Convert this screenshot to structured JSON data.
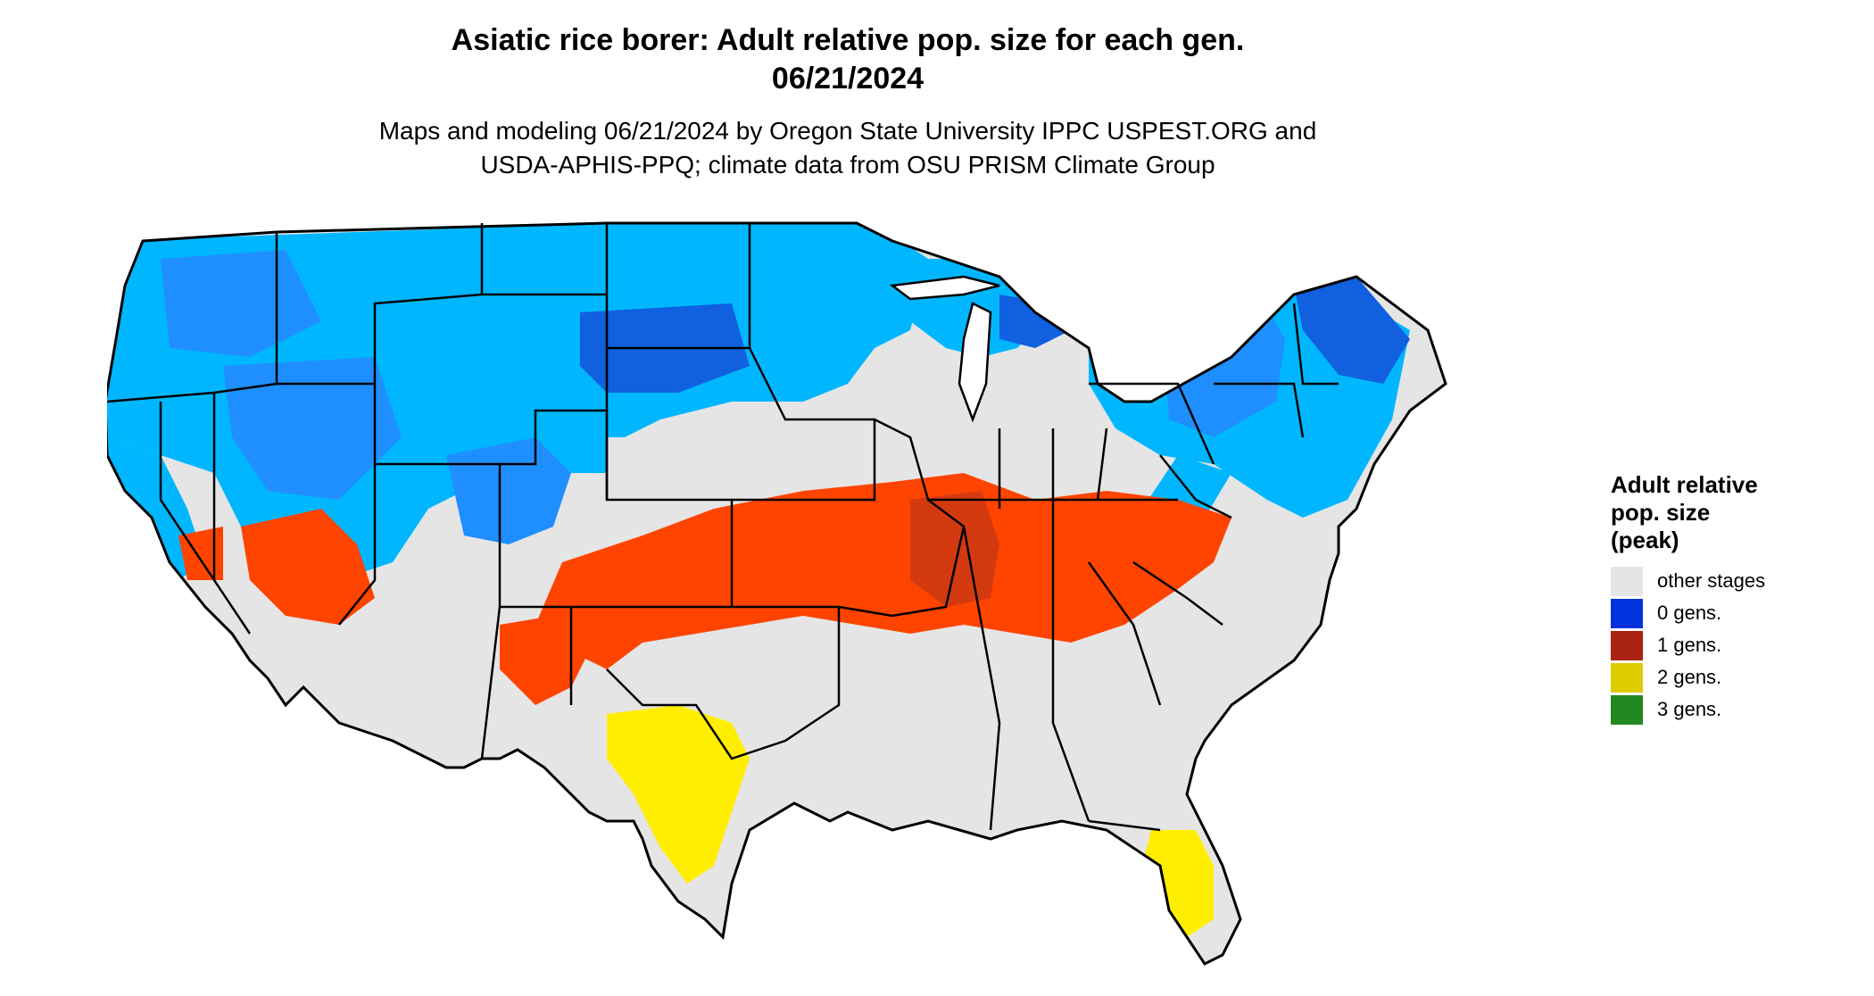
{
  "header": {
    "title_line1": "Asiatic rice borer: Adult relative pop. size for each gen.",
    "title_line2": "06/21/2024",
    "subtitle_line1": "Maps and modeling 06/21/2024 by Oregon State University IPPC USPEST.ORG and",
    "subtitle_line2": "USDA-APHIS-PPQ; climate data from OSU PRISM Climate Group"
  },
  "legend": {
    "title_line1": "Adult relative",
    "title_line2": "pop. size",
    "title_line3": "(peak)",
    "items": [
      {
        "label": "other stages",
        "color": "#e5e5e5"
      },
      {
        "label": "0 gens.",
        "color": "#0033dd"
      },
      {
        "label": "1 gens.",
        "color": "#aa2211"
      },
      {
        "label": "2 gens.",
        "color": "#ddcc00"
      },
      {
        "label": "3 gens.",
        "color": "#228822"
      }
    ]
  },
  "map_colors": {
    "background": "#e5e5e5",
    "blue_light": "#00b7ff",
    "blue_mid": "#1f8fff",
    "blue_dark": "#1060e0",
    "red_orange": "#ff4400",
    "red_dark": "#d43a10",
    "yellow": "#ffee00",
    "border": "#000000"
  }
}
